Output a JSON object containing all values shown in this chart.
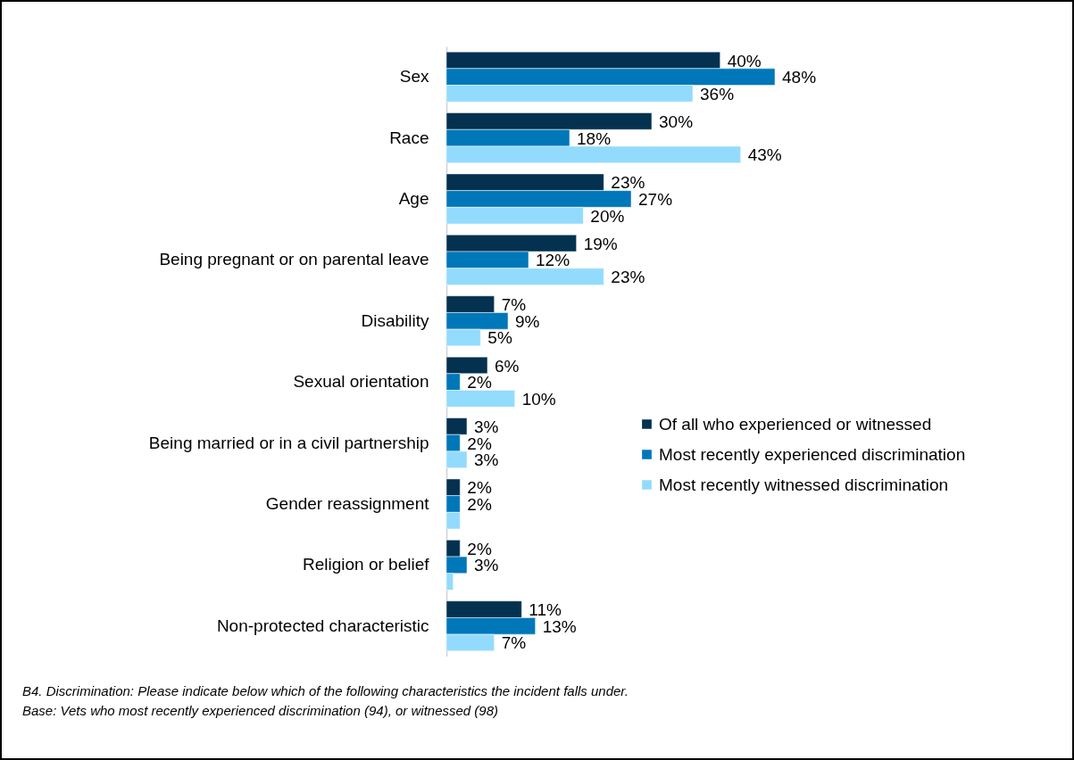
{
  "chart_data": {
    "type": "bar",
    "orientation": "horizontal",
    "categories": [
      "Sex",
      "Race",
      "Age",
      "Being pregnant or on parental leave",
      "Disability",
      "Sexual orientation",
      "Being married or in a civil partnership",
      "Gender reassignment",
      "Religion or belief",
      "Non-protected characteristic"
    ],
    "series": [
      {
        "name": "Of all who experienced or witnessed",
        "color": "#03314f",
        "values": [
          40,
          30,
          23,
          19,
          7,
          6,
          3,
          2,
          2,
          11
        ],
        "value_labels": [
          "40%",
          "30%",
          "23%",
          "19%",
          "7%",
          "6%",
          "3%",
          "2%",
          "2%",
          "11%"
        ]
      },
      {
        "name": "Most recently experienced discrimination",
        "color": "#0077b9",
        "values": [
          48,
          18,
          27,
          12,
          9,
          2,
          2,
          2,
          3,
          13
        ],
        "value_labels": [
          "48%",
          "18%",
          "27%",
          "12%",
          "9%",
          "2%",
          "2%",
          "2%",
          "3%",
          "13%"
        ]
      },
      {
        "name": "Most recently witnessed discrimination",
        "color": "#93dbfd",
        "values": [
          36,
          43,
          20,
          23,
          5,
          10,
          3,
          2,
          1,
          7
        ],
        "value_labels": [
          "36%",
          "43%",
          "20%",
          "23%",
          "5%",
          "10%",
          "3%",
          null,
          null,
          "7%"
        ]
      }
    ],
    "legend": "right",
    "annotations": [
      "B4. Discrimination: Please indicate below which of the following characteristics the incident falls under.",
      "Base: Vets who most recently experienced discrimination (94), or witnessed (98)"
    ]
  }
}
